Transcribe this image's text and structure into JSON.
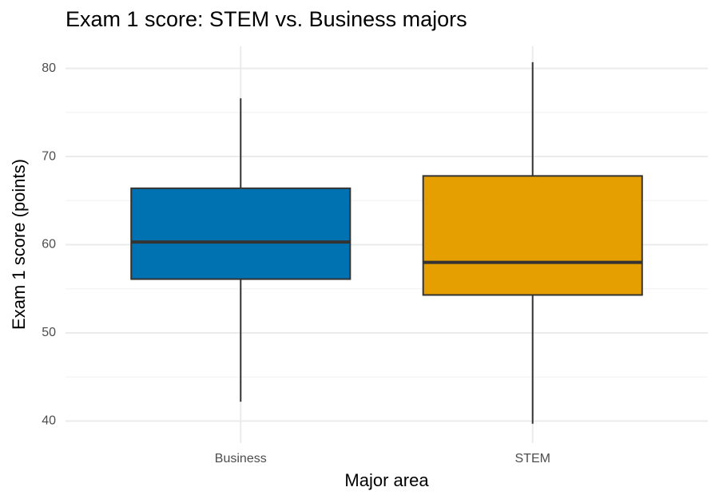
{
  "chart_data": {
    "type": "box",
    "title": "Exam 1 score: STEM vs. Business majors",
    "x_label": "Major area",
    "y_label": "Exam 1 score (points)",
    "categories": [
      "Business",
      "STEM"
    ],
    "colors": [
      "#0072B2",
      "#E69F00"
    ],
    "whisker_low": [
      42.2,
      39.7
    ],
    "q1": [
      56.1,
      54.3
    ],
    "median": [
      60.3,
      58.0
    ],
    "q3": [
      66.4,
      67.8
    ],
    "whisker_high": [
      76.6,
      80.7
    ],
    "ylim": [
      37.5,
      82.5
    ],
    "yticks": [
      40,
      50,
      60,
      70,
      80
    ],
    "minor_yticks": [
      45,
      55,
      65,
      75
    ],
    "grid": true
  }
}
